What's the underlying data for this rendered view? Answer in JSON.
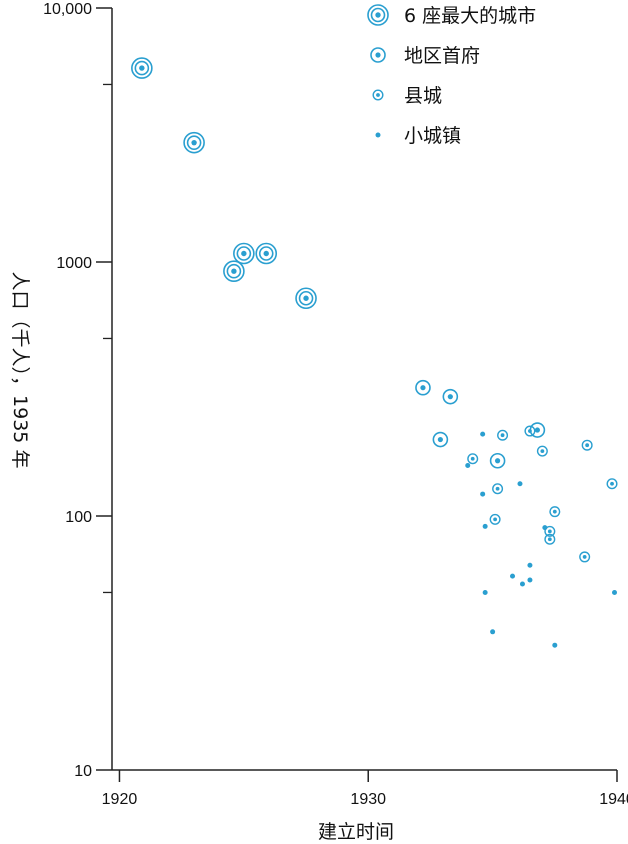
{
  "chart_data": {
    "type": "scatter",
    "title": "",
    "xlabel": "建立时间",
    "ylabel": "人口（千人），1935 年",
    "xlim": [
      1919.7,
      1940
    ],
    "ylim": [
      10,
      10000
    ],
    "yscale": "log",
    "grid": false,
    "legend_position": "top-right",
    "x_ticks": [
      {
        "value": 1920,
        "label": "1920"
      },
      {
        "value": 1930,
        "label": "1930"
      },
      {
        "value": 1940,
        "label": "1940"
      }
    ],
    "y_ticks": [
      {
        "value": 10,
        "label": "10"
      },
      {
        "value": 100,
        "label": "100"
      },
      {
        "value": 1000,
        "label": "1000"
      },
      {
        "value": 10000,
        "label": "10,000"
      }
    ],
    "y_minor_ticks": [
      50,
      500,
      5000
    ],
    "color": "#2a9fd0",
    "series": [
      {
        "name": "6 座最大的城市",
        "marker": "ring3",
        "points": [
          {
            "x": 1920.9,
            "y": 5800
          },
          {
            "x": 1923.0,
            "y": 2950
          },
          {
            "x": 1924.6,
            "y": 920
          },
          {
            "x": 1925.0,
            "y": 1080
          },
          {
            "x": 1925.9,
            "y": 1080
          },
          {
            "x": 1927.5,
            "y": 720
          }
        ]
      },
      {
        "name": "地区首府",
        "marker": "ring2",
        "points": [
          {
            "x": 1932.2,
            "y": 320
          },
          {
            "x": 1933.3,
            "y": 295
          },
          {
            "x": 1932.9,
            "y": 200
          },
          {
            "x": 1935.2,
            "y": 165
          },
          {
            "x": 1936.8,
            "y": 218
          }
        ]
      },
      {
        "name": "县城",
        "marker": "ring1",
        "points": [
          {
            "x": 1934.2,
            "y": 168
          },
          {
            "x": 1935.4,
            "y": 208
          },
          {
            "x": 1936.5,
            "y": 216
          },
          {
            "x": 1937.0,
            "y": 180
          },
          {
            "x": 1938.8,
            "y": 190
          },
          {
            "x": 1935.2,
            "y": 128
          },
          {
            "x": 1939.8,
            "y": 134
          },
          {
            "x": 1937.5,
            "y": 104
          },
          {
            "x": 1935.1,
            "y": 97
          },
          {
            "x": 1937.3,
            "y": 87
          },
          {
            "x": 1937.3,
            "y": 81
          },
          {
            "x": 1938.7,
            "y": 69
          }
        ]
      },
      {
        "name": "小城镇",
        "marker": "dot",
        "points": [
          {
            "x": 1934.6,
            "y": 210
          },
          {
            "x": 1934.0,
            "y": 158
          },
          {
            "x": 1936.1,
            "y": 134
          },
          {
            "x": 1934.6,
            "y": 122
          },
          {
            "x": 1934.7,
            "y": 91
          },
          {
            "x": 1937.1,
            "y": 90
          },
          {
            "x": 1936.5,
            "y": 64
          },
          {
            "x": 1935.8,
            "y": 58
          },
          {
            "x": 1936.5,
            "y": 56
          },
          {
            "x": 1936.2,
            "y": 54
          },
          {
            "x": 1934.7,
            "y": 50
          },
          {
            "x": 1939.9,
            "y": 50
          },
          {
            "x": 1935.0,
            "y": 35
          },
          {
            "x": 1937.5,
            "y": 31
          }
        ]
      }
    ]
  }
}
